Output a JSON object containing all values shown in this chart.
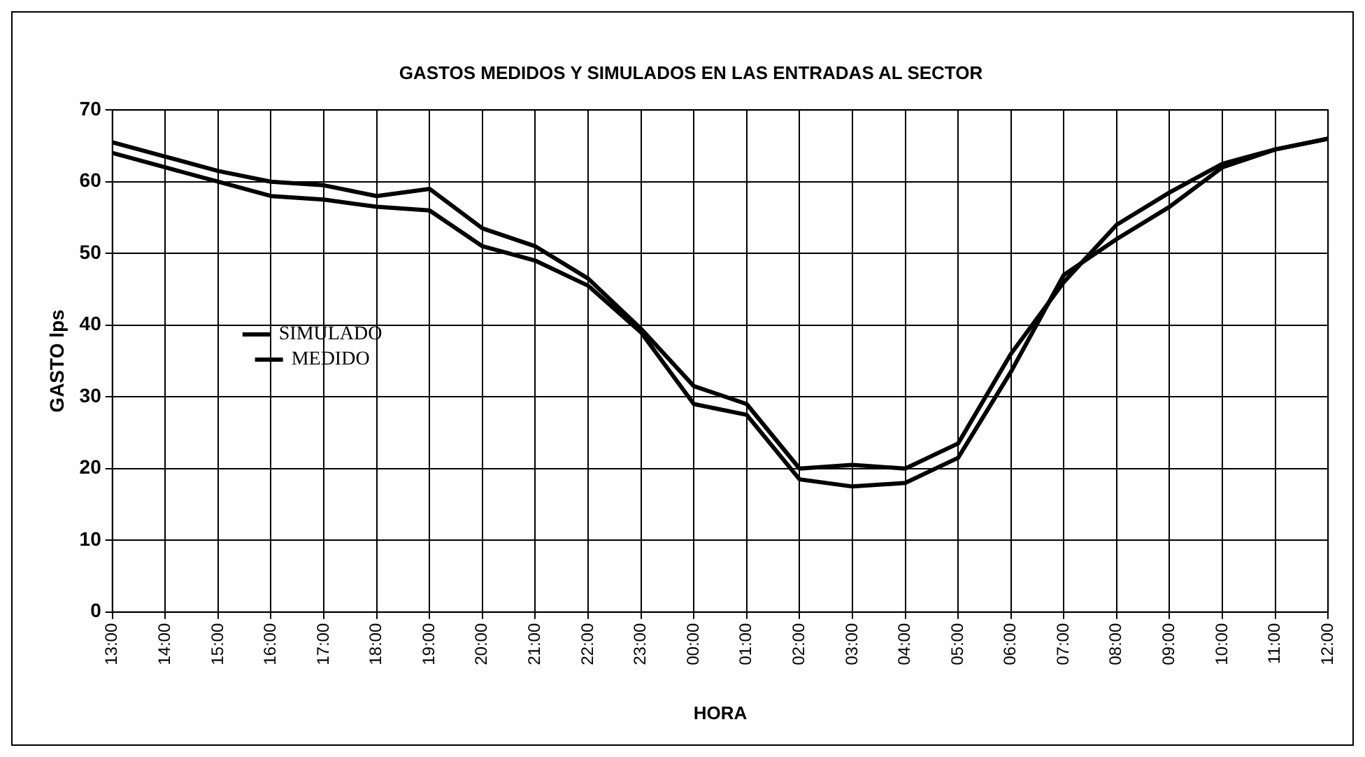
{
  "chart_data": {
    "type": "line",
    "title": "GASTOS MEDIDOS Y SIMULADOS EN LAS ENTRADAS AL SECTOR",
    "xlabel": "HORA",
    "ylabel": "GASTO lps",
    "categories": [
      "13:00",
      "14:00",
      "15:00",
      "16:00",
      "17:00",
      "18:00",
      "19:00",
      "20:00",
      "21:00",
      "22:00",
      "23:00",
      "00:00",
      "01:00",
      "02:00",
      "03:00",
      "04:00",
      "05:00",
      "06:00",
      "07:00",
      "08:00",
      "09:00",
      "10:00",
      "11:00",
      "12:00"
    ],
    "series": [
      {
        "name": "SIMULADO",
        "color": "#000000",
        "values": [
          65.5,
          63.5,
          61.5,
          60,
          59.5,
          58,
          59,
          53.5,
          51,
          46.5,
          39.5,
          31.5,
          29,
          20,
          20.5,
          20,
          23.5,
          36,
          46,
          54,
          58.5,
          62.5,
          64.5,
          66
        ]
      },
      {
        "name": "MEDIDO",
        "color": "#000000",
        "values": [
          64,
          62,
          60,
          58,
          57.5,
          56.5,
          56,
          51,
          49,
          45.5,
          39,
          29,
          27.5,
          18.5,
          17.5,
          18,
          21.5,
          33.5,
          47,
          52,
          56.5,
          62,
          64.5,
          66
        ]
      }
    ],
    "ylim": [
      0,
      70
    ],
    "yticks": [
      0,
      10,
      20,
      30,
      40,
      50,
      60,
      70
    ],
    "grid": true,
    "legend": "left",
    "marker": "none",
    "line_style": "solid"
  }
}
